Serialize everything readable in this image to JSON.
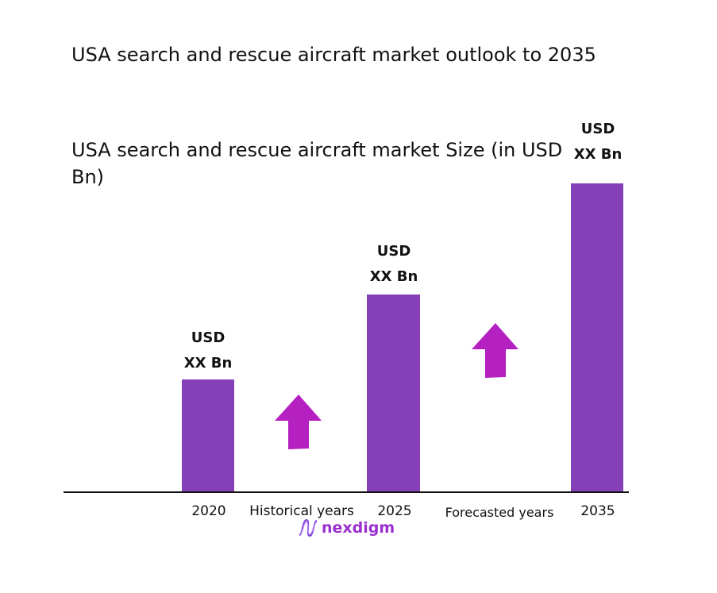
{
  "title": "USA search and rescue aircraft market outlook to 2035",
  "chart_data": {
    "type": "bar",
    "title": "USA search and rescue aircraft market Size (in USD Bn)",
    "categories": [
      "2020",
      "2025",
      "2035"
    ],
    "data_labels": [
      {
        "line1": "USD",
        "line2": "XX Bn"
      },
      {
        "line1": "USD",
        "line2": "XX Bn"
      },
      {
        "line1": "USD",
        "line2": "XX Bn"
      }
    ],
    "period_labels": [
      "Historical years",
      "Forecasted years"
    ],
    "bar_color": "#8540B8",
    "arrow_color": "#B520C0",
    "grid": false
  },
  "logo": {
    "text": "nexdigm"
  }
}
